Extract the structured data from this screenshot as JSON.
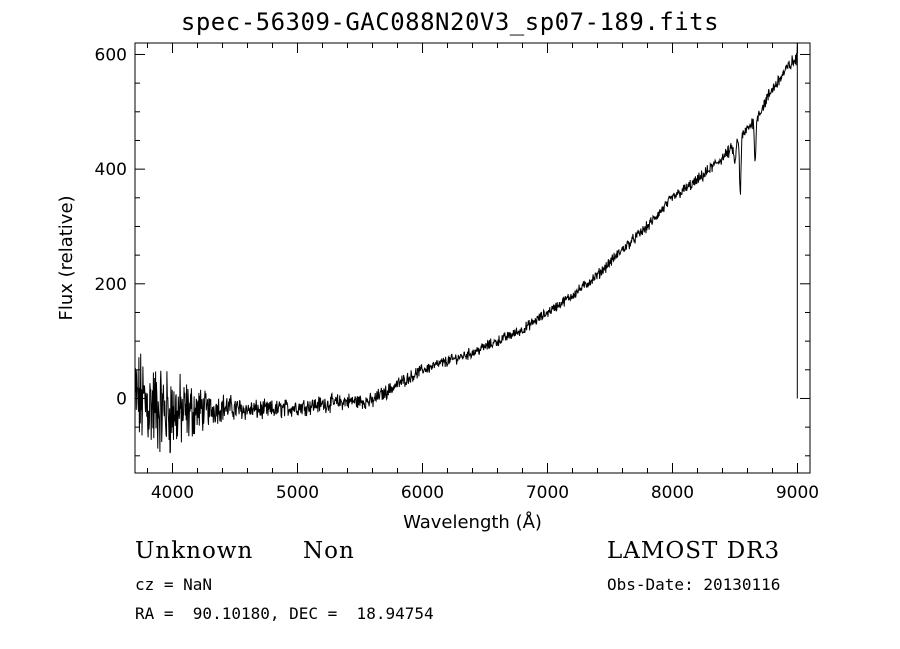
{
  "chart_data": {
    "type": "line",
    "title": "spec-56309-GAC088N20V3_sp07-189.fits",
    "xlabel": "Wavelength (Å)",
    "ylabel": "Flux (relative)",
    "xlim": [
      3700,
      9100
    ],
    "ylim": [
      -130,
      620
    ],
    "xticks": [
      4000,
      5000,
      6000,
      7000,
      8000,
      9000
    ],
    "yticks": [
      0,
      200,
      400,
      600
    ],
    "grid": false,
    "series": [
      {
        "name": "flux",
        "anchors_x": [
          3700,
          3800,
          3900,
          4000,
          4100,
          4200,
          4300,
          4400,
          4600,
          4800,
          5000,
          5200,
          5400,
          5600,
          5650,
          5700,
          5800,
          6000,
          6200,
          6400,
          6600,
          6800,
          7000,
          7200,
          7400,
          7600,
          7800,
          8000,
          8200,
          8400,
          8500,
          8550,
          8600,
          8700,
          8800,
          8900,
          8950,
          8990
        ],
        "anchors_y": [
          0,
          -10,
          -20,
          -25,
          -25,
          -20,
          -20,
          -15,
          -20,
          -20,
          -15,
          -10,
          -5,
          -5,
          5,
          10,
          25,
          50,
          65,
          80,
          100,
          120,
          150,
          180,
          215,
          260,
          300,
          350,
          380,
          420,
          440,
          455,
          470,
          500,
          540,
          570,
          585,
          590
        ],
        "noise_x": [
          3700,
          4000,
          4300,
          4600,
          5500,
          5700,
          6000,
          7000,
          8000,
          8600,
          9000
        ],
        "noise_amp": [
          70,
          60,
          22,
          14,
          11,
          10,
          8,
          7,
          8,
          9,
          10
        ],
        "absorption_lines": [
          {
            "x": 8498,
            "depth": 35
          },
          {
            "x": 8542,
            "depth": 95
          },
          {
            "x": 8662,
            "depth": 75
          }
        ],
        "edge_spike": {
          "x": 8998,
          "ymax": 620,
          "ymin": 0
        }
      }
    ]
  },
  "info": {
    "class_left": "Unknown",
    "class_right": "Non",
    "survey": "LAMOST DR3",
    "cz": "cz = NaN",
    "obs_date": "Obs-Date: 20130116",
    "coords": "RA =  90.10180, DEC =  18.94754"
  }
}
